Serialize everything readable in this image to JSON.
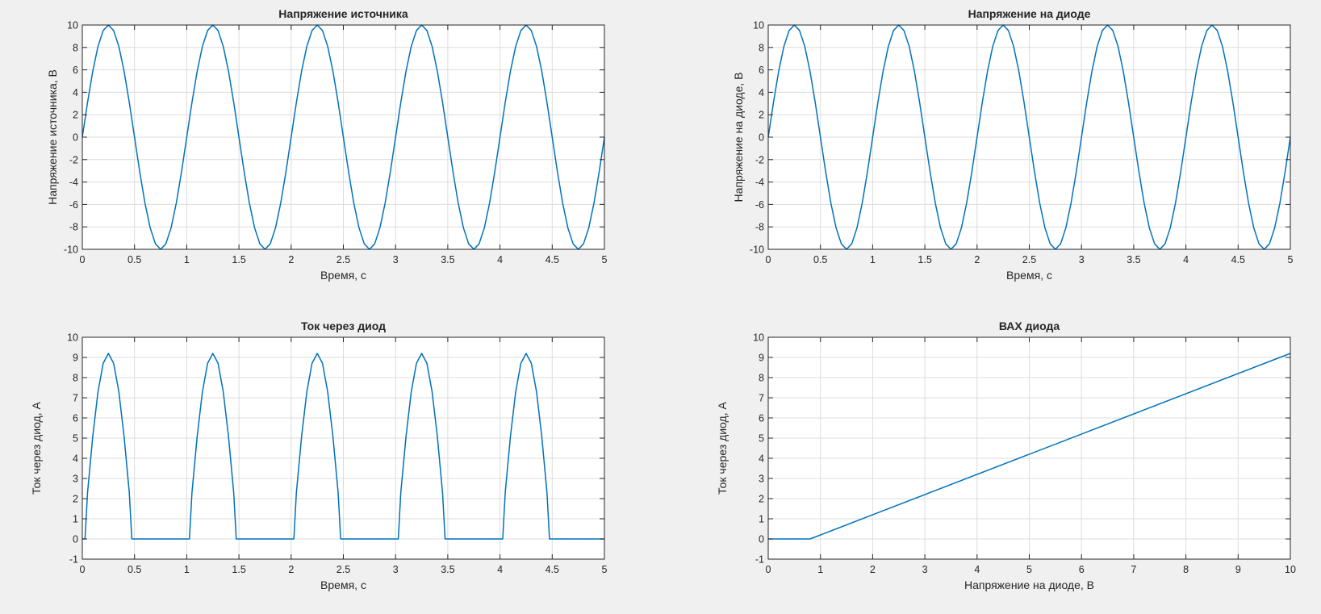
{
  "colors": {
    "figure_bg": "#f0f0f0",
    "axes_bg": "#ffffff",
    "line": "#0072bd",
    "grid": "#dcdcdc",
    "axis": "#262626"
  },
  "chart_data": [
    {
      "type": "line",
      "title": "Напряжение источника",
      "xlabel": "Время, с",
      "ylabel": "Напряжение источника, В",
      "xlim": [
        0,
        5
      ],
      "ylim": [
        -10,
        10
      ],
      "xticks": [
        0,
        0.5,
        1,
        1.5,
        2,
        2.5,
        3,
        3.5,
        4,
        4.5,
        5
      ],
      "yticks": [
        -10,
        -8,
        -6,
        -4,
        -2,
        0,
        2,
        4,
        6,
        8,
        10
      ],
      "grid": true,
      "series": [
        {
          "x": [
            0,
            0.05,
            0.1,
            0.15,
            0.2,
            0.25,
            0.3,
            0.35,
            0.4,
            0.45,
            0.5,
            0.55,
            0.6,
            0.65,
            0.7,
            0.75,
            0.8,
            0.85,
            0.9,
            0.95,
            1,
            1.05,
            1.1,
            1.15,
            1.2,
            1.25,
            1.3,
            1.35,
            1.4,
            1.45,
            1.5,
            1.55,
            1.6,
            1.65,
            1.7,
            1.75,
            1.8,
            1.85,
            1.9,
            1.95,
            2,
            2.05,
            2.1,
            2.15,
            2.2,
            2.25,
            2.3,
            2.35,
            2.4,
            2.45,
            2.5,
            2.55,
            2.6,
            2.65,
            2.7,
            2.75,
            2.8,
            2.85,
            2.9,
            2.95,
            3,
            3.05,
            3.1,
            3.15,
            3.2,
            3.25,
            3.3,
            3.35,
            3.4,
            3.45,
            3.5,
            3.55,
            3.6,
            3.65,
            3.7,
            3.75,
            3.8,
            3.85,
            3.9,
            3.95,
            4,
            4.05,
            4.1,
            4.15,
            4.2,
            4.25,
            4.3,
            4.35,
            4.4,
            4.45,
            4.5,
            4.55,
            4.6,
            4.65,
            4.7,
            4.75,
            4.8,
            4.85,
            4.9,
            4.95,
            5
          ],
          "y": [
            0,
            3.09,
            5.88,
            8.09,
            9.51,
            10,
            9.51,
            8.09,
            5.88,
            3.09,
            0,
            -3.09,
            -5.88,
            -8.09,
            -9.51,
            -10,
            -9.51,
            -8.09,
            -5.88,
            -3.09,
            0,
            3.09,
            5.88,
            8.09,
            9.51,
            10,
            9.51,
            8.09,
            5.88,
            3.09,
            0,
            -3.09,
            -5.88,
            -8.09,
            -9.51,
            -10,
            -9.51,
            -8.09,
            -5.88,
            -3.09,
            0,
            3.09,
            5.88,
            8.09,
            9.51,
            10,
            9.51,
            8.09,
            5.88,
            3.09,
            0,
            -3.09,
            -5.88,
            -8.09,
            -9.51,
            -10,
            -9.51,
            -8.09,
            -5.88,
            -3.09,
            0,
            3.09,
            5.88,
            8.09,
            9.51,
            10,
            9.51,
            8.09,
            5.88,
            3.09,
            0,
            -3.09,
            -5.88,
            -8.09,
            -9.51,
            -10,
            -9.51,
            -8.09,
            -5.88,
            -3.09,
            0,
            3.09,
            5.88,
            8.09,
            9.51,
            10,
            9.51,
            8.09,
            5.88,
            3.09,
            0,
            -3.09,
            -5.88,
            -8.09,
            -9.51,
            -10,
            -9.51,
            -8.09,
            -5.88,
            -3.09,
            0
          ]
        }
      ]
    },
    {
      "type": "line",
      "title": "Напряжение на диоде",
      "xlabel": "Время, с",
      "ylabel": "Напряжение на диоде, В",
      "xlim": [
        0,
        5
      ],
      "ylim": [
        -10,
        10
      ],
      "xticks": [
        0,
        0.5,
        1,
        1.5,
        2,
        2.5,
        3,
        3.5,
        4,
        4.5,
        5
      ],
      "yticks": [
        -10,
        -8,
        -6,
        -4,
        -2,
        0,
        2,
        4,
        6,
        8,
        10
      ],
      "grid": true,
      "series": [
        {
          "x": [
            0,
            0.05,
            0.1,
            0.15,
            0.2,
            0.25,
            0.3,
            0.35,
            0.4,
            0.45,
            0.5,
            0.55,
            0.6,
            0.65,
            0.7,
            0.75,
            0.8,
            0.85,
            0.9,
            0.95,
            1,
            1.05,
            1.1,
            1.15,
            1.2,
            1.25,
            1.3,
            1.35,
            1.4,
            1.45,
            1.5,
            1.55,
            1.6,
            1.65,
            1.7,
            1.75,
            1.8,
            1.85,
            1.9,
            1.95,
            2,
            2.05,
            2.1,
            2.15,
            2.2,
            2.25,
            2.3,
            2.35,
            2.4,
            2.45,
            2.5,
            2.55,
            2.6,
            2.65,
            2.7,
            2.75,
            2.8,
            2.85,
            2.9,
            2.95,
            3,
            3.05,
            3.1,
            3.15,
            3.2,
            3.25,
            3.3,
            3.35,
            3.4,
            3.45,
            3.5,
            3.55,
            3.6,
            3.65,
            3.7,
            3.75,
            3.8,
            3.85,
            3.9,
            3.95,
            4,
            4.05,
            4.1,
            4.15,
            4.2,
            4.25,
            4.3,
            4.35,
            4.4,
            4.45,
            4.5,
            4.55,
            4.6,
            4.65,
            4.7,
            4.75,
            4.8,
            4.85,
            4.9,
            4.95,
            5
          ],
          "y": [
            0,
            3.09,
            5.88,
            8.09,
            9.51,
            10,
            9.51,
            8.09,
            5.88,
            3.09,
            0,
            -3.09,
            -5.88,
            -8.09,
            -9.51,
            -10,
            -9.51,
            -8.09,
            -5.88,
            -3.09,
            0,
            3.09,
            5.88,
            8.09,
            9.51,
            10,
            9.51,
            8.09,
            5.88,
            3.09,
            0,
            -3.09,
            -5.88,
            -8.09,
            -9.51,
            -10,
            -9.51,
            -8.09,
            -5.88,
            -3.09,
            0,
            3.09,
            5.88,
            8.09,
            9.51,
            10,
            9.51,
            8.09,
            5.88,
            3.09,
            0,
            -3.09,
            -5.88,
            -8.09,
            -9.51,
            -10,
            -9.51,
            -8.09,
            -5.88,
            -3.09,
            0,
            3.09,
            5.88,
            8.09,
            9.51,
            10,
            9.51,
            8.09,
            5.88,
            3.09,
            0,
            -3.09,
            -5.88,
            -8.09,
            -9.51,
            -10,
            -9.51,
            -8.09,
            -5.88,
            -3.09,
            0,
            3.09,
            5.88,
            8.09,
            9.51,
            10,
            9.51,
            8.09,
            5.88,
            3.09,
            0,
            -3.09,
            -5.88,
            -8.09,
            -9.51,
            -10,
            -9.51,
            -8.09,
            -5.88,
            -3.09,
            0
          ]
        }
      ]
    },
    {
      "type": "line",
      "title": "Ток через диод",
      "xlabel": "Время, с",
      "ylabel": "Ток через диод, А",
      "xlim": [
        0,
        5
      ],
      "ylim": [
        -1,
        10
      ],
      "xticks": [
        0,
        0.5,
        1,
        1.5,
        2,
        2.5,
        3,
        3.5,
        4,
        4.5,
        5
      ],
      "yticks": [
        -1,
        0,
        1,
        2,
        3,
        4,
        5,
        6,
        7,
        8,
        9,
        10
      ],
      "grid": true,
      "series": [
        {
          "x": [
            0,
            0.026,
            0.05,
            0.1,
            0.15,
            0.2,
            0.25,
            0.3,
            0.35,
            0.4,
            0.45,
            0.474,
            0.5,
            0.55,
            0.6,
            0.65,
            0.7,
            0.75,
            0.8,
            0.85,
            0.9,
            0.95,
            1,
            1.026,
            1.05,
            1.1,
            1.15,
            1.2,
            1.25,
            1.3,
            1.35,
            1.4,
            1.45,
            1.474,
            1.5,
            1.55,
            1.6,
            1.65,
            1.7,
            1.75,
            1.8,
            1.85,
            1.9,
            1.95,
            2,
            2.026,
            2.05,
            2.1,
            2.15,
            2.2,
            2.25,
            2.3,
            2.35,
            2.4,
            2.45,
            2.474,
            2.5,
            2.55,
            2.6,
            2.65,
            2.7,
            2.75,
            2.8,
            2.85,
            2.9,
            2.95,
            3,
            3.026,
            3.05,
            3.1,
            3.15,
            3.2,
            3.25,
            3.3,
            3.35,
            3.4,
            3.45,
            3.474,
            3.5,
            3.55,
            3.6,
            3.65,
            3.7,
            3.75,
            3.8,
            3.85,
            3.9,
            3.95,
            4,
            4.026,
            4.05,
            4.1,
            4.15,
            4.2,
            4.25,
            4.3,
            4.35,
            4.4,
            4.45,
            4.474,
            4.5,
            4.55,
            4.6,
            4.65,
            4.7,
            4.75,
            4.8,
            4.85,
            4.9,
            4.95,
            5
          ],
          "y": [
            0,
            0,
            2.29,
            5.08,
            7.29,
            8.71,
            9.2,
            8.71,
            7.29,
            5.08,
            2.29,
            0,
            0,
            0,
            0,
            0,
            0,
            0,
            0,
            0,
            0,
            0,
            0,
            0,
            2.29,
            5.08,
            7.29,
            8.71,
            9.2,
            8.71,
            7.29,
            5.08,
            2.29,
            0,
            0,
            0,
            0,
            0,
            0,
            0,
            0,
            0,
            0,
            0,
            0,
            0,
            2.29,
            5.08,
            7.29,
            8.71,
            9.2,
            8.71,
            7.29,
            5.08,
            2.29,
            0,
            0,
            0,
            0,
            0,
            0,
            0,
            0,
            0,
            0,
            0,
            0,
            0,
            2.29,
            5.08,
            7.29,
            8.71,
            9.2,
            8.71,
            7.29,
            5.08,
            2.29,
            0,
            0,
            0,
            0,
            0,
            0,
            0,
            0,
            0,
            0,
            0,
            0,
            0,
            2.29,
            5.08,
            7.29,
            8.71,
            9.2,
            8.71,
            7.29,
            5.08,
            2.29,
            0,
            0,
            0,
            0,
            0,
            0,
            0,
            0,
            0,
            0,
            0,
            0
          ]
        }
      ]
    },
    {
      "type": "line",
      "title": "ВАХ диода",
      "xlabel": "Напряжение на диоде, В",
      "ylabel": "Ток через диод, А",
      "xlim": [
        0,
        10
      ],
      "ylim": [
        -1,
        10
      ],
      "xticks": [
        0,
        1,
        2,
        3,
        4,
        5,
        6,
        7,
        8,
        9,
        10
      ],
      "yticks": [
        -1,
        0,
        1,
        2,
        3,
        4,
        5,
        6,
        7,
        8,
        9,
        10
      ],
      "grid": true,
      "series": [
        {
          "x": [
            0,
            0.8,
            10
          ],
          "y": [
            0,
            0,
            9.2
          ]
        }
      ]
    }
  ]
}
